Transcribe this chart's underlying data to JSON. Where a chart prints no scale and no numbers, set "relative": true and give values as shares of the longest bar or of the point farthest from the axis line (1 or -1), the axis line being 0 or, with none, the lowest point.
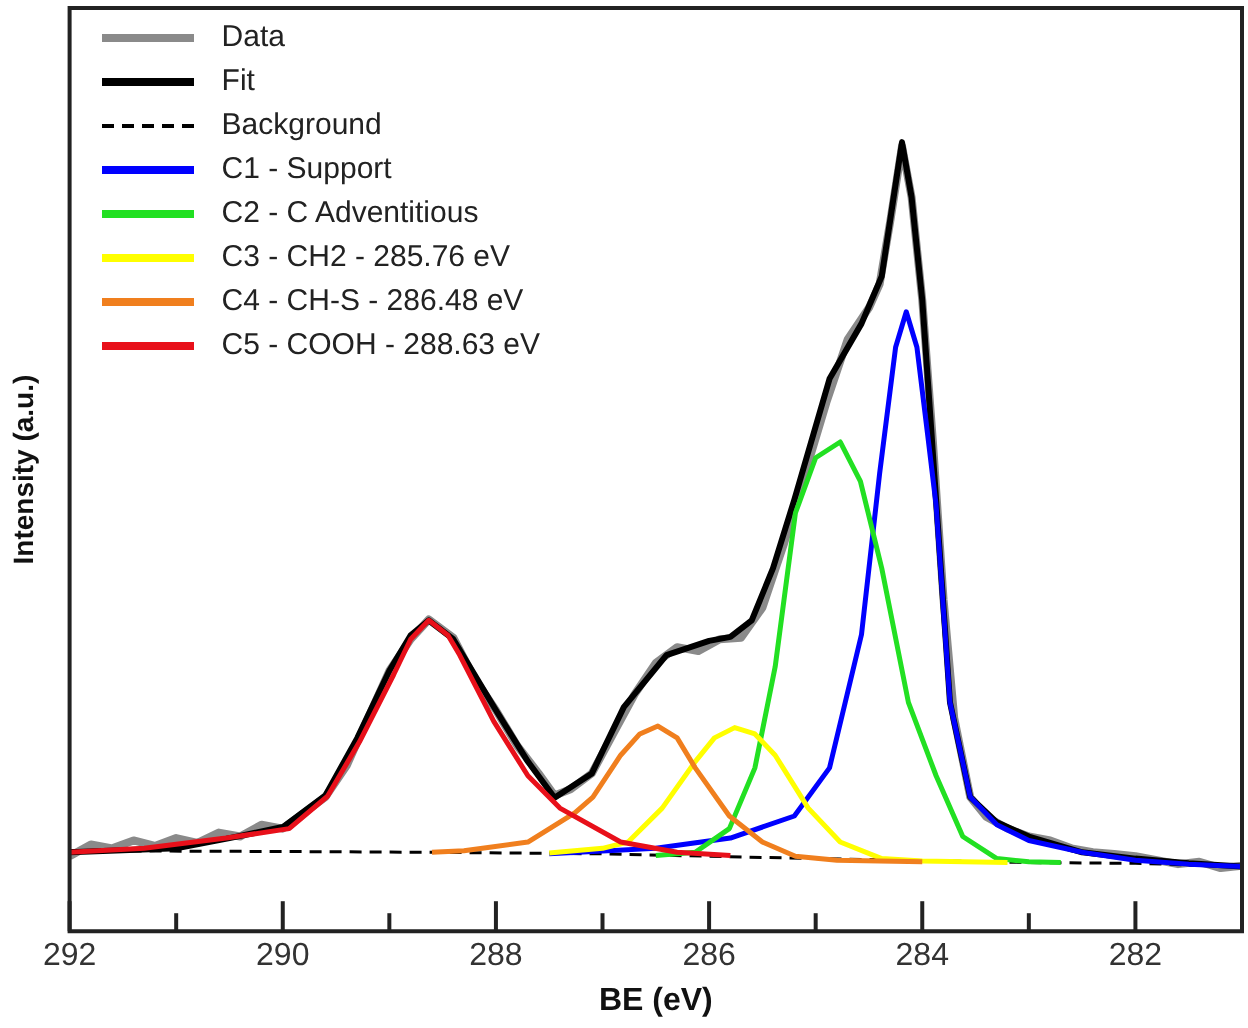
{
  "chart_data": {
    "type": "line",
    "xlabel": "BE (eV)",
    "ylabel": "Intensity (a.u.)",
    "relative": true,
    "xlim": [
      292,
      281
    ],
    "xticks": [
      292,
      {
        "value": 291,
        "label": null
      },
      290,
      {
        "value": 289,
        "label": null
      },
      288,
      {
        "value": 287,
        "label": null
      },
      286,
      {
        "value": 285,
        "label": null
      },
      284,
      {
        "value": 283,
        "label": null
      },
      282
    ],
    "legend": "top left",
    "marker": "none",
    "series": [
      {
        "name": "Data",
        "color": "#8a8a8a",
        "x": [
          292,
          291.8,
          291.6,
          291.4,
          291.2,
          291,
          290.8,
          290.6,
          290.4,
          290.2,
          290,
          289.8,
          289.6,
          289.4,
          289.2,
          289,
          288.8,
          288.63,
          288.4,
          288.2,
          288,
          287.8,
          287.6,
          287.45,
          287.3,
          287.1,
          286.9,
          286.7,
          286.5,
          286.3,
          286.1,
          285.9,
          285.7,
          285.5,
          285.3,
          285.1,
          284.9,
          284.7,
          284.5,
          284.4,
          284.3,
          284.19,
          284.1,
          284.0,
          283.9,
          283.8,
          283.7,
          283.55,
          283.4,
          283.2,
          283,
          282.8,
          282.6,
          282.4,
          282.2,
          282,
          281.8,
          281.6,
          281.4,
          281.2,
          281
        ],
        "values": [
          0.095,
          0.11,
          0.105,
          0.115,
          0.108,
          0.118,
          0.112,
          0.125,
          0.12,
          0.135,
          0.13,
          0.15,
          0.17,
          0.21,
          0.27,
          0.33,
          0.37,
          0.395,
          0.372,
          0.32,
          0.28,
          0.235,
          0.2,
          0.172,
          0.18,
          0.2,
          0.25,
          0.3,
          0.34,
          0.36,
          0.355,
          0.37,
          0.372,
          0.41,
          0.49,
          0.58,
          0.67,
          0.75,
          0.79,
          0.82,
          0.9,
          0.995,
          0.93,
          0.8,
          0.62,
          0.42,
          0.27,
          0.17,
          0.145,
          0.13,
          0.12,
          0.115,
          0.105,
          0.1,
          0.098,
          0.095,
          0.09,
          0.085,
          0.088,
          0.08,
          0.083
        ]
      },
      {
        "name": "Fit",
        "color": "#000000",
        "x": [
          292,
          291,
          290.5,
          290,
          289.6,
          289.3,
          289,
          288.8,
          288.63,
          288.4,
          288,
          287.7,
          287.45,
          287.1,
          286.8,
          286.4,
          286.0,
          285.8,
          285.6,
          285.4,
          285.2,
          284.87,
          284.57,
          284.38,
          284.28,
          284.19,
          284.1,
          284.0,
          283.87,
          283.74,
          283.55,
          283.3,
          283,
          282.5,
          282,
          281.5,
          281
        ],
        "values": [
          0.1,
          0.105,
          0.118,
          0.132,
          0.172,
          0.245,
          0.33,
          0.375,
          0.394,
          0.37,
          0.28,
          0.215,
          0.169,
          0.2,
          0.284,
          0.35,
          0.368,
          0.373,
          0.394,
          0.46,
          0.547,
          0.7,
          0.77,
          0.83,
          0.92,
          1.0,
          0.93,
          0.8,
          0.547,
          0.29,
          0.17,
          0.138,
          0.12,
          0.1,
          0.092,
          0.086,
          0.082
        ]
      },
      {
        "name": "Background",
        "color": "#000000",
        "line_style": "dashed",
        "x": [
          292,
          290,
          288.6,
          287,
          286,
          285,
          284,
          283,
          282,
          281
        ],
        "values": [
          0.102,
          0.101,
          0.1,
          0.098,
          0.095,
          0.092,
          null,
          0.087,
          0.086,
          0.082
        ]
      },
      {
        "name": "C1 - Support",
        "color": "#0000ff",
        "x": [
          287.5,
          286.5,
          285.8,
          285.2,
          284.87,
          284.57,
          284.4,
          284.25,
          284.15,
          284.05,
          283.95,
          283.87,
          283.74,
          283.55,
          283.3,
          283,
          282.5,
          282,
          281.5,
          281
        ],
        "values": [
          0.098,
          0.105,
          0.118,
          0.146,
          0.207,
          0.376,
          0.58,
          0.74,
          0.785,
          0.74,
          0.63,
          0.54,
          0.29,
          0.17,
          0.135,
          0.115,
          0.1,
          0.09,
          0.085,
          0.082
        ]
      },
      {
        "name": "C2 - C Adventitious",
        "color": "#22e022",
        "x": [
          286.5,
          286.13,
          285.81,
          285.57,
          285.38,
          285.19,
          285.0,
          284.77,
          284.58,
          284.38,
          284.13,
          283.87,
          283.62,
          283.3,
          283.0,
          282.7
        ],
        "values": [
          0.096,
          0.1,
          0.13,
          0.207,
          0.335,
          0.53,
          0.6,
          0.62,
          0.57,
          0.46,
          0.29,
          0.197,
          0.12,
          0.092,
          0.088,
          0.087
        ]
      },
      {
        "name": "C3 - CH2 - 285.76 eV",
        "color": "#ffff00",
        "x": [
          287.5,
          287.0,
          286.76,
          286.44,
          286.13,
          285.95,
          285.76,
          285.57,
          285.38,
          285.07,
          284.77,
          284.38,
          284.0,
          283.6,
          283.2
        ],
        "values": [
          0.099,
          0.105,
          0.113,
          0.156,
          0.215,
          0.245,
          0.258,
          0.25,
          0.223,
          0.156,
          0.113,
          0.092,
          0.089,
          0.088,
          0.087
        ]
      },
      {
        "name": "C4 - CH-S - 286.48 eV",
        "color": "#f07f1e",
        "x": [
          288.6,
          288.3,
          287.7,
          287.26,
          287.09,
          286.83,
          286.65,
          286.48,
          286.3,
          286.13,
          285.81,
          285.5,
          285.19,
          284.8,
          284.4,
          284.0
        ],
        "values": [
          0.1,
          0.102,
          0.113,
          0.15,
          0.17,
          0.223,
          0.25,
          0.26,
          0.245,
          0.207,
          0.146,
          0.113,
          0.095,
          0.09,
          0.089,
          0.088
        ]
      },
      {
        "name": "C5 - COOH - 288.63 eV",
        "color": "#e8101a",
        "x": [
          292,
          291.3,
          290.53,
          289.94,
          289.58,
          289.28,
          288.96,
          288.8,
          288.63,
          288.45,
          288.34,
          288.02,
          287.7,
          287.4,
          286.83,
          286.3,
          285.8
        ],
        "values": [
          0.1,
          0.105,
          0.118,
          0.13,
          0.171,
          0.24,
          0.325,
          0.37,
          0.394,
          0.375,
          0.35,
          0.266,
          0.197,
          0.156,
          0.113,
          0.1,
          0.096
        ]
      }
    ]
  }
}
